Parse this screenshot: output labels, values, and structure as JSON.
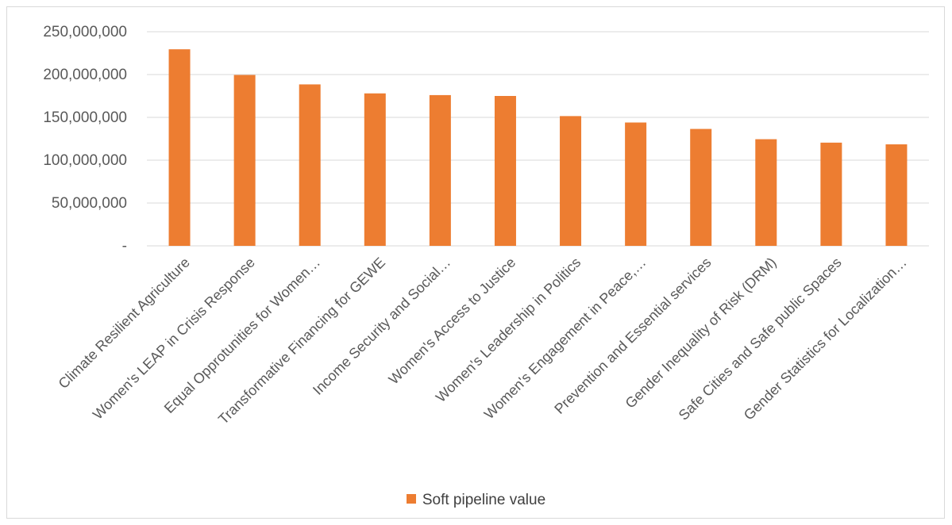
{
  "chart_data": {
    "type": "bar",
    "title": "",
    "xlabel": "",
    "ylabel": "",
    "categories": [
      "Climate Resilient Agriculture",
      "Women's LEAP in Crisis Response",
      "Equal Opprotunities for Women…",
      "Transformative Financing for GEWE",
      "Income Security and Social…",
      "Women's Access to Justice",
      "Women's Leadership in Politics",
      "Women's Engagement in Peace,…",
      "Prevention and Essential services",
      "Gender Inequality of Risk (DRM)",
      "Safe Cities  and Safe public Spaces",
      "Gender Statistics for Localization…"
    ],
    "series": [
      {
        "name": "Soft pipeline value",
        "color": "#ED7D31",
        "values": [
          229500000,
          199500000,
          188500000,
          178000000,
          176000000,
          175000000,
          151500000,
          144000000,
          136500000,
          124500000,
          120500000,
          118500000
        ]
      }
    ],
    "ylim": [
      0,
      250000000
    ],
    "yticks": [
      0,
      50000000,
      100000000,
      150000000,
      200000000,
      250000000
    ],
    "ytick_labels": [
      "-",
      "50,000,000",
      "100,000,000",
      "150,000,000",
      "200,000,000",
      "250,000,000"
    ],
    "grid": true,
    "legend_position": "bottom",
    "legend_label": "Soft pipeline value"
  }
}
